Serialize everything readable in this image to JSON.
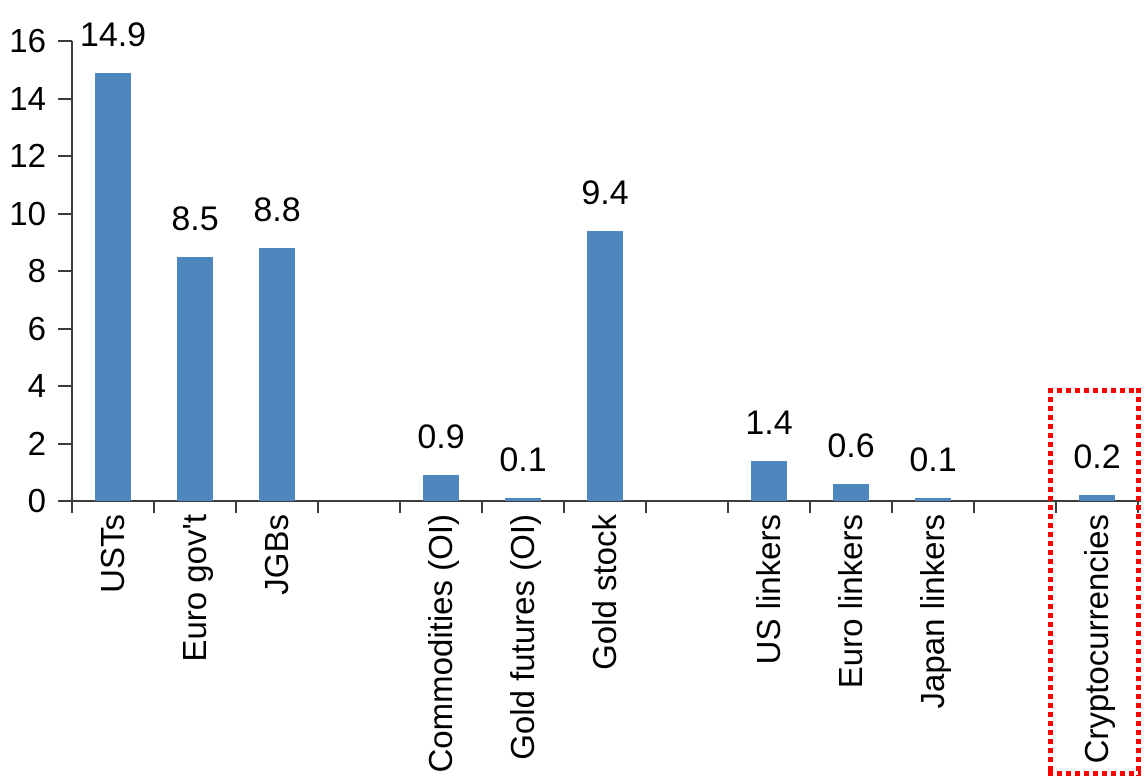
{
  "chart_data": {
    "type": "bar",
    "title": "",
    "xlabel": "",
    "ylabel": "",
    "categories": [
      "USTs",
      "Euro gov't",
      "JGBs",
      "",
      "Commodities (OI)",
      "Gold futures (OI)",
      "Gold stock",
      "",
      "US linkers",
      "Euro linkers",
      "Japan linkers",
      "",
      "Cryptocurrencies"
    ],
    "values": [
      14.9,
      8.5,
      8.8,
      null,
      0.9,
      0.1,
      9.4,
      null,
      1.4,
      0.6,
      0.1,
      null,
      0.2
    ],
    "bar_labels": [
      "14.9",
      "8.5",
      "8.8",
      "",
      "0.9",
      "0.1",
      "9.4",
      "",
      "1.4",
      "0.6",
      "0.1",
      "",
      "0.2"
    ],
    "yticks": [
      "16",
      "14",
      "12",
      "10",
      "8",
      "6",
      "4",
      "2",
      "0"
    ],
    "ytick_values": [
      16,
      14,
      12,
      10,
      8,
      6,
      4,
      2,
      0
    ],
    "ylim": [
      0,
      16
    ],
    "grid": "off",
    "legend": "none",
    "bar_color": "#4E87BE",
    "axis_color": "#3d3d3d",
    "text_color": "#000000",
    "highlight": {
      "category": "Cryptocurrencies",
      "shape": "dotted-rectangle",
      "color": "#FE0000"
    }
  }
}
